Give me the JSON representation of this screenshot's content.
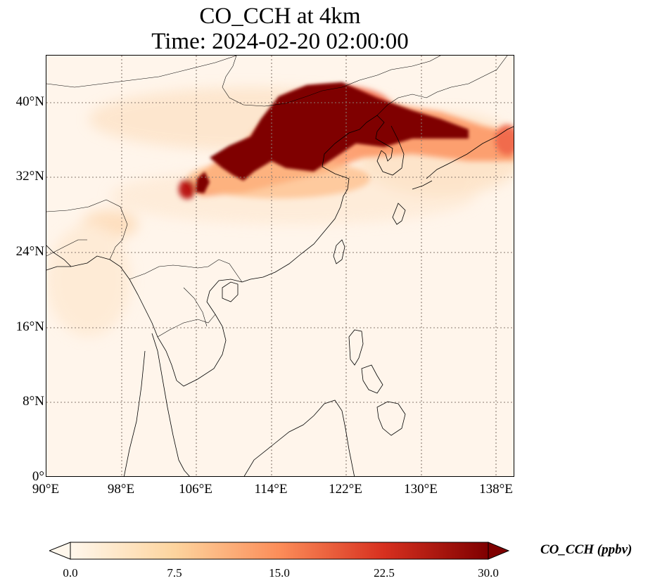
{
  "title": {
    "line1": "CO_CCH at 4km",
    "line2": "Time: 2024-02-20 02:00:00"
  },
  "map": {
    "extent": {
      "lon_min": 90,
      "lon_max": 140,
      "lat_min": 0,
      "lat_max": 45
    },
    "gridlines": "dotted",
    "lat_ticks": [
      {
        "value": 0,
        "label": "0°"
      },
      {
        "value": 8,
        "label": "8°N"
      },
      {
        "value": 16,
        "label": "16°N"
      },
      {
        "value": 24,
        "label": "24°N"
      },
      {
        "value": 32,
        "label": "32°N"
      },
      {
        "value": 40,
        "label": "40°N"
      }
    ],
    "lon_ticks": [
      {
        "value": 90,
        "label": "90°E"
      },
      {
        "value": 98,
        "label": "98°E"
      },
      {
        "value": 106,
        "label": "106°E"
      },
      {
        "value": 114,
        "label": "114°E"
      },
      {
        "value": 122,
        "label": "122°E"
      },
      {
        "value": 130,
        "label": "130°E"
      },
      {
        "value": 138,
        "label": "138°E"
      }
    ],
    "features": [
      "coastlines",
      "country-borders"
    ],
    "colormap": "OrRd"
  },
  "colorbar": {
    "title": "CO_CCH (ppbv)",
    "min": 0.0,
    "max": 30.0,
    "extend": "both",
    "ticks": [
      {
        "value": 0.0,
        "label": "0.0"
      },
      {
        "value": 7.5,
        "label": "7.5"
      },
      {
        "value": 15.0,
        "label": "15.0"
      },
      {
        "value": 22.5,
        "label": "22.5"
      },
      {
        "value": 30.0,
        "label": "30.0"
      }
    ],
    "colors": [
      "#fff5eb",
      "#fdd49e",
      "#fc8d59",
      "#d7301f",
      "#7f0000"
    ]
  }
}
